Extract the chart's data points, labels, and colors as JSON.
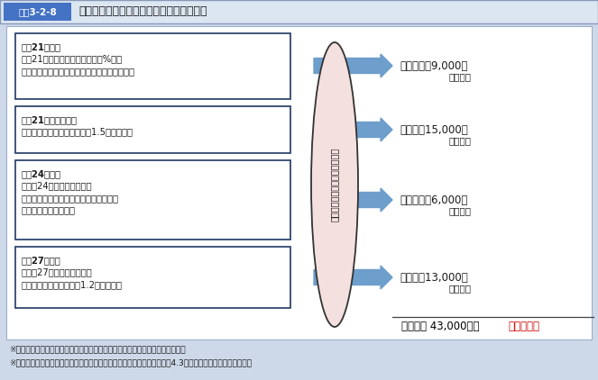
{
  "title_label": "図表3-2-8",
  "title_text": "介護報酬改定における介護人材の処遇改善",
  "background_color": "#cdd8e8",
  "inner_bg_color": "#ffffff",
  "header_bg_color": "#4472c4",
  "boxes": [
    {
      "lines": [
        "平成21年４月",
        "平成21年度介護報酬改定　＋３%改定",
        "（介護従事者の処遇改善に重点をおいた改定）"
      ],
      "result1": "月額　＋　9,000円",
      "result2": "（実績）"
    },
    {
      "lines": [
        "平成21年度補正予算",
        "　　処遇改善交付金を措置（1.5万円相当）"
      ],
      "result1": "月額　＋15,000円",
      "result2": "（実績）"
    },
    {
      "lines": [
        "平成24年４月",
        "　平成24年度介護報酬改定",
        "　処遇改善交付金を処遇改善加算として",
        "　介護報酬に組み込む"
      ],
      "result1": "月額　＋　6,000円",
      "result2": "（実績）"
    },
    {
      "lines": [
        "平成27年４月",
        "　平成27年度介護報酬改定",
        "　処遇改善加算の拡充（1.2万円相当）"
      ],
      "result1": "月額　＋13,000円",
      "result2": "（実績）"
    }
  ],
  "ellipse_text": "施設・事業所における処遇改善",
  "total_line": "月額　＋ 43,000円　",
  "total_suffix": "相当の効果",
  "note1": "※１　上記４つの取組み等により、それぞれ実績として給与が改善されている。",
  "note2": "※２　上記実績はそれぞれ調査客体等が異なるが、これを合計すれば月額4.3万円相当の改善となっている。",
  "box_border_color": "#1f3864",
  "arrow_color": "#6d9ecc",
  "ellipse_fill": "#f4e0de",
  "ellipse_border": "#333333",
  "total_color": "#000000",
  "total_suffix_color": "#cc0000",
  "text_color": "#1a1a1a",
  "header_text_color": "#ffffff",
  "title_text_color": "#1a1a1a"
}
